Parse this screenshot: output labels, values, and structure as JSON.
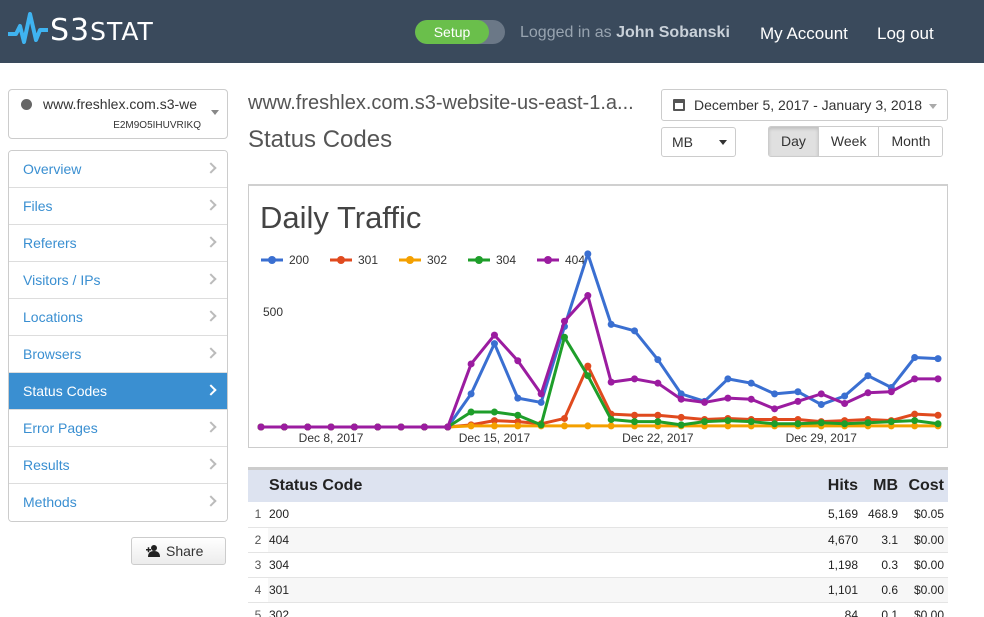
{
  "header": {
    "logo_s3": "S3",
    "logo_stat": "STAT",
    "setup_label": "Setup",
    "logged_in_prefix": "Logged in as",
    "user_name": "John Sobanski",
    "my_account": "My Account",
    "log_out": "Log out"
  },
  "site_selector": {
    "url": "www.freshlex.com.s3-we",
    "id": "E2M9O5IHUVRIKQ"
  },
  "sidebar": {
    "items": [
      {
        "label": "Overview",
        "active": false
      },
      {
        "label": "Files",
        "active": false
      },
      {
        "label": "Referers",
        "active": false
      },
      {
        "label": "Visitors / IPs",
        "active": false
      },
      {
        "label": "Locations",
        "active": false
      },
      {
        "label": "Browsers",
        "active": false
      },
      {
        "label": "Status Codes",
        "active": true
      },
      {
        "label": "Error Pages",
        "active": false
      },
      {
        "label": "Results",
        "active": false
      },
      {
        "label": "Methods",
        "active": false
      }
    ],
    "share_label": "Share"
  },
  "main": {
    "site_title": "www.freshlex.com.s3-website-us-east-1.a...",
    "page_title": "Status Codes",
    "date_range": "December 5, 2017 - January 3, 2018",
    "unit": "MB",
    "period_buttons": [
      "Day",
      "Week",
      "Month"
    ],
    "active_period": "Day"
  },
  "chart_data": {
    "type": "line",
    "title": "Daily Traffic",
    "x_ticks": [
      "Dec 8, 2017",
      "Dec 15, 2017",
      "Dec 22, 2017",
      "Dec 29, 2017"
    ],
    "y_ticks": [
      500
    ],
    "x": [
      "2017-12-05",
      "2017-12-06",
      "2017-12-07",
      "2017-12-08",
      "2017-12-09",
      "2017-12-10",
      "2017-12-11",
      "2017-12-12",
      "2017-12-13",
      "2017-12-14",
      "2017-12-15",
      "2017-12-16",
      "2017-12-17",
      "2017-12-18",
      "2017-12-19",
      "2017-12-20",
      "2017-12-21",
      "2017-12-22",
      "2017-12-23",
      "2017-12-24",
      "2017-12-25",
      "2017-12-26",
      "2017-12-27",
      "2017-12-28",
      "2017-12-29",
      "2017-12-30",
      "2017-12-31",
      "2018-01-01",
      "2018-01-02",
      "2018-01-03"
    ],
    "ylim": [
      0,
      800
    ],
    "series": [
      {
        "name": "200",
        "color": "#3a6fd1",
        "values": [
          0,
          0,
          0,
          0,
          0,
          0,
          0,
          0,
          0,
          155,
          390,
          135,
          115,
          470,
          810,
          480,
          450,
          315,
          155,
          120,
          225,
          205,
          155,
          165,
          105,
          145,
          240,
          185,
          325,
          320
        ]
      },
      {
        "name": "301",
        "color": "#e04a1e",
        "values": [
          0,
          0,
          0,
          0,
          0,
          0,
          0,
          0,
          0,
          10,
          30,
          25,
          15,
          40,
          285,
          60,
          55,
          55,
          45,
          35,
          40,
          35,
          35,
          35,
          25,
          30,
          35,
          30,
          60,
          55
        ]
      },
      {
        "name": "302",
        "color": "#f4a000",
        "values": [
          0,
          0,
          0,
          0,
          0,
          0,
          0,
          0,
          0,
          5,
          5,
          5,
          5,
          5,
          5,
          5,
          5,
          5,
          5,
          5,
          5,
          5,
          5,
          5,
          5,
          5,
          5,
          5,
          5,
          5
        ]
      },
      {
        "name": "304",
        "color": "#1e9e2a",
        "values": [
          0,
          0,
          0,
          0,
          0,
          0,
          0,
          0,
          0,
          70,
          70,
          55,
          10,
          420,
          240,
          35,
          25,
          25,
          10,
          25,
          30,
          25,
          15,
          15,
          20,
          15,
          20,
          25,
          30,
          15
        ]
      },
      {
        "name": "404",
        "color": "#9b1ca0",
        "values": [
          0,
          0,
          0,
          0,
          0,
          0,
          0,
          0,
          0,
          295,
          430,
          310,
          155,
          495,
          615,
          210,
          225,
          205,
          130,
          115,
          135,
          130,
          85,
          120,
          155,
          110,
          160,
          165,
          225,
          225
        ]
      }
    ]
  },
  "table": {
    "headers": [
      "Status Code",
      "Hits",
      "MB",
      "Cost"
    ],
    "rows": [
      {
        "n": "1",
        "code": "200",
        "hits": "5,169",
        "mb": "468.9",
        "cost": "$0.05"
      },
      {
        "n": "2",
        "code": "404",
        "hits": "4,670",
        "mb": "3.1",
        "cost": "$0.00"
      },
      {
        "n": "3",
        "code": "304",
        "hits": "1,198",
        "mb": "0.3",
        "cost": "$0.00"
      },
      {
        "n": "4",
        "code": "301",
        "hits": "1,101",
        "mb": "0.6",
        "cost": "$0.00"
      },
      {
        "n": "5",
        "code": "302",
        "hits": "84",
        "mb": "0.1",
        "cost": "$0.00"
      }
    ]
  }
}
